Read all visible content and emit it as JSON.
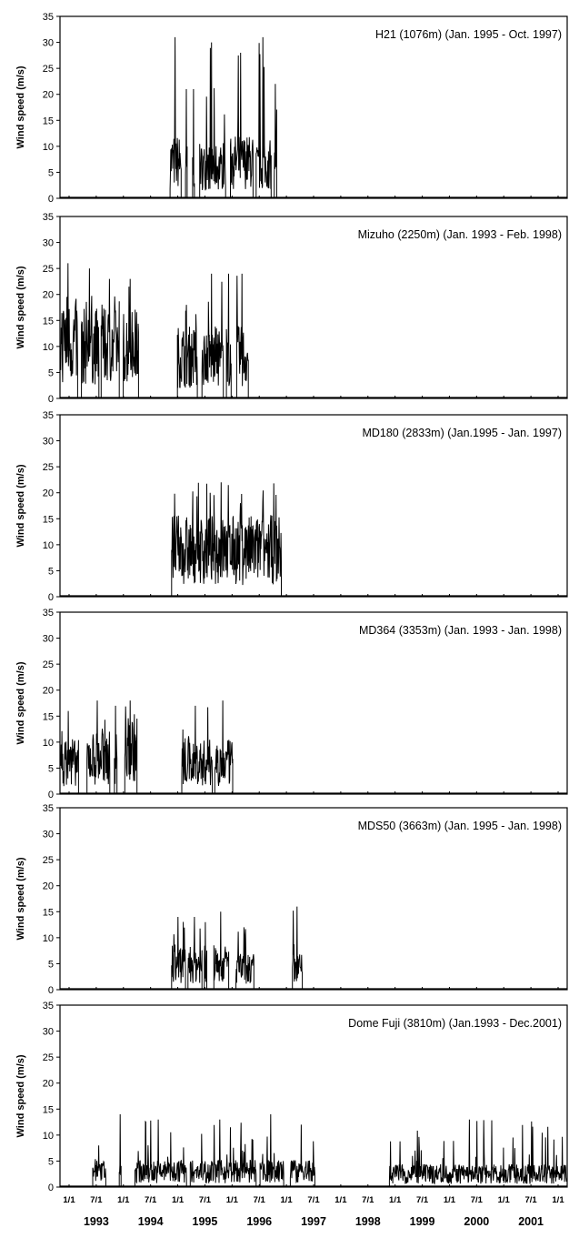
{
  "chart_data": {
    "type": "line",
    "xlabel": "",
    "xlim": [
      "1993-01-01",
      "2001-12-31"
    ],
    "x_ticks": [
      "1/1",
      "7/1",
      "1/1",
      "7/1",
      "1/1",
      "7/1",
      "1/1",
      "7/1",
      "1/1",
      "7/1",
      "1/1",
      "7/1",
      "1/1",
      "7/1",
      "1/1",
      "7/1",
      "1/1",
      "7/1",
      "1/1"
    ],
    "year_labels": [
      "1993",
      "1994",
      "1995",
      "1996",
      "1997",
      "1998",
      "1999",
      "2000",
      "2001"
    ],
    "ylim": [
      0,
      35
    ],
    "y_ticks": [
      "0",
      "5",
      "10",
      "15",
      "20",
      "25",
      "30",
      "35"
    ],
    "panels": [
      {
        "title": "H21 (1076m)  (Jan. 1995 - Oct. 1997)",
        "ylabel": "Wind speed (m/s)",
        "segments": [
          {
            "start": "1994-12-15",
            "end": "1995-02-25",
            "mean": 7,
            "max": 31
          },
          {
            "start": "1995-03-25",
            "end": "1995-04-05",
            "mean": 6,
            "max": 21
          },
          {
            "start": "1995-05-10",
            "end": "1995-05-22",
            "mean": 6,
            "max": 21
          },
          {
            "start": "1995-06-25",
            "end": "1995-12-10",
            "mean": 6,
            "max": 30
          },
          {
            "start": "1996-01-10",
            "end": "1996-06-05",
            "mean": 7,
            "max": 28
          },
          {
            "start": "1996-06-25",
            "end": "1996-09-30",
            "mean": 6,
            "max": 31
          },
          {
            "start": "1996-10-20",
            "end": "1996-11-05",
            "mean": 6,
            "max": 22
          }
        ]
      },
      {
        "title": "Mizuho (2250m)  (Jan. 1993 - Feb. 1998)",
        "ylabel": "Wind speed (m/s)",
        "segments": [
          {
            "start": "1993-01-01",
            "end": "1993-04-25",
            "mean": 11,
            "max": 26
          },
          {
            "start": "1993-05-20",
            "end": "1993-09-10",
            "mean": 10,
            "max": 25
          },
          {
            "start": "1993-09-25",
            "end": "1994-01-20",
            "mean": 10,
            "max": 23
          },
          {
            "start": "1994-02-15",
            "end": "1994-05-25",
            "mean": 10,
            "max": 23
          },
          {
            "start": "1995-02-01",
            "end": "1995-06-10",
            "mean": 8,
            "max": 18
          },
          {
            "start": "1995-07-10",
            "end": "1995-11-25",
            "mean": 8,
            "max": 24
          },
          {
            "start": "1995-12-15",
            "end": "1996-01-15",
            "mean": 8,
            "max": 24
          },
          {
            "start": "1996-02-20",
            "end": "1996-05-05",
            "mean": 8,
            "max": 24
          }
        ]
      },
      {
        "title": "MD180 (2833m)  (Jan.1995 - Jan. 1997)",
        "ylabel": "Wind speed (m/s)",
        "segments": [
          {
            "start": "1994-12-25",
            "end": "1996-12-05",
            "mean": 9,
            "max": 22
          }
        ]
      },
      {
        "title": "MD364 (3353m)  (Jan. 1993 - Jan. 1998)",
        "ylabel": "Wind speed (m/s)",
        "segments": [
          {
            "start": "1993-01-01",
            "end": "1993-05-01",
            "mean": 6,
            "max": 16
          },
          {
            "start": "1993-06-25",
            "end": "1993-11-20",
            "mean": 7,
            "max": 18
          },
          {
            "start": "1993-12-20",
            "end": "1994-01-05",
            "mean": 7,
            "max": 17
          },
          {
            "start": "1994-02-25",
            "end": "1994-05-15",
            "mean": 9,
            "max": 18
          },
          {
            "start": "1995-03-01",
            "end": "1995-09-15",
            "mean": 6,
            "max": 17
          },
          {
            "start": "1995-10-01",
            "end": "1996-01-25",
            "mean": 6,
            "max": 18
          }
        ]
      },
      {
        "title": "MDS50 (3663m)  (Jan. 1995 - Jan. 1998)",
        "ylabel": "Wind speed (m/s)",
        "segments": [
          {
            "start": "1994-12-25",
            "end": "1995-03-25",
            "mean": 5,
            "max": 14
          },
          {
            "start": "1995-04-10",
            "end": "1995-07-10",
            "mean": 5,
            "max": 14
          },
          {
            "start": "1995-07-25",
            "end": "1995-08-10",
            "mean": 5,
            "max": 13
          },
          {
            "start": "1995-09-25",
            "end": "1995-12-30",
            "mean": 5,
            "max": 15
          },
          {
            "start": "1996-02-15",
            "end": "1996-06-10",
            "mean": 4,
            "max": 12
          },
          {
            "start": "1997-02-15",
            "end": "1997-04-20",
            "mean": 4,
            "max": 16
          }
        ]
      },
      {
        "title": "Dome Fuji (3810m)  (Jan.1993 - Dec.2001)",
        "ylabel": "Wind speed (m/s)",
        "segments": [
          {
            "start": "1993-08-01",
            "end": "1993-10-25",
            "mean": 3,
            "max": 8
          },
          {
            "start": "1994-01-20",
            "end": "1994-02-01",
            "mean": 3,
            "max": 14
          },
          {
            "start": "1994-05-01",
            "end": "1995-04-01",
            "mean": 3,
            "max": 13
          },
          {
            "start": "1995-04-25",
            "end": "1996-06-25",
            "mean": 3,
            "max": 13
          },
          {
            "start": "1996-07-20",
            "end": "1996-12-20",
            "mean": 3,
            "max": 14
          },
          {
            "start": "1997-02-01",
            "end": "1997-07-10",
            "mean": 3,
            "max": 12
          },
          {
            "start": "1998-11-05",
            "end": "2001-12-31",
            "mean": 2.5,
            "max": 13
          }
        ]
      }
    ]
  }
}
